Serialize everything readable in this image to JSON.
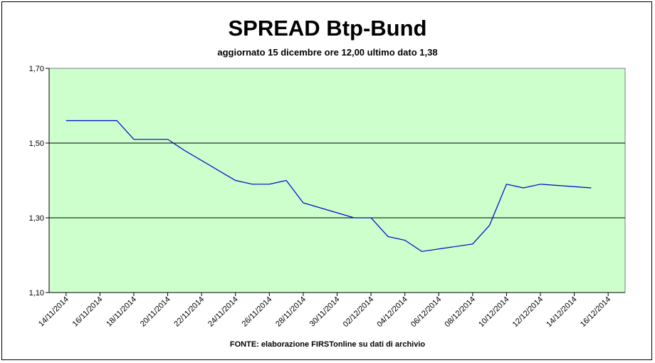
{
  "chart_data": {
    "type": "line",
    "title": "SPREAD Btp-Bund",
    "subtitle": "aggiornato 15 dicembre ore 12,00  ultimo dato  1,38",
    "source": "FONTE: elaborazione FIRSTonline su dati di archivio",
    "xlabel": "",
    "ylabel": "",
    "ylim": [
      1.1,
      1.7
    ],
    "y_ticks": [
      "1,10",
      "1,30",
      "1,50",
      "1,70"
    ],
    "y_tick_values": [
      1.1,
      1.3,
      1.5,
      1.7
    ],
    "x_ticks": [
      "14/11/2014",
      "16/11/2014",
      "18/11/2014",
      "20/11/2014",
      "22/11/2014",
      "24/11/2014",
      "26/11/2014",
      "28/11/2014",
      "30/11/2014",
      "02/12/2014",
      "04/12/2014",
      "06/12/2014",
      "08/12/2014",
      "10/12/2014",
      "12/12/2014",
      "14/12/2014",
      "16/12/2014"
    ],
    "grid": true,
    "plot_background": "#ccffcc",
    "line_color": "#0000cc",
    "series": [
      {
        "x": [
          "14/11/2014",
          "17/11/2014",
          "18/11/2014",
          "19/11/2014",
          "20/11/2014",
          "21/11/2014",
          "24/11/2014",
          "25/11/2014",
          "26/11/2014",
          "27/11/2014",
          "28/11/2014",
          "01/12/2014",
          "02/12/2014",
          "03/12/2014",
          "04/12/2014",
          "05/12/2014",
          "08/12/2014",
          "09/12/2014",
          "10/12/2014",
          "11/12/2014",
          "12/12/2014",
          "15/12/2014"
        ],
        "values": [
          1.56,
          1.56,
          1.51,
          1.51,
          1.51,
          1.48,
          1.4,
          1.39,
          1.39,
          1.4,
          1.34,
          1.3,
          1.3,
          1.25,
          1.24,
          1.21,
          1.23,
          1.28,
          1.39,
          1.38,
          1.39,
          1.38
        ]
      }
    ]
  }
}
